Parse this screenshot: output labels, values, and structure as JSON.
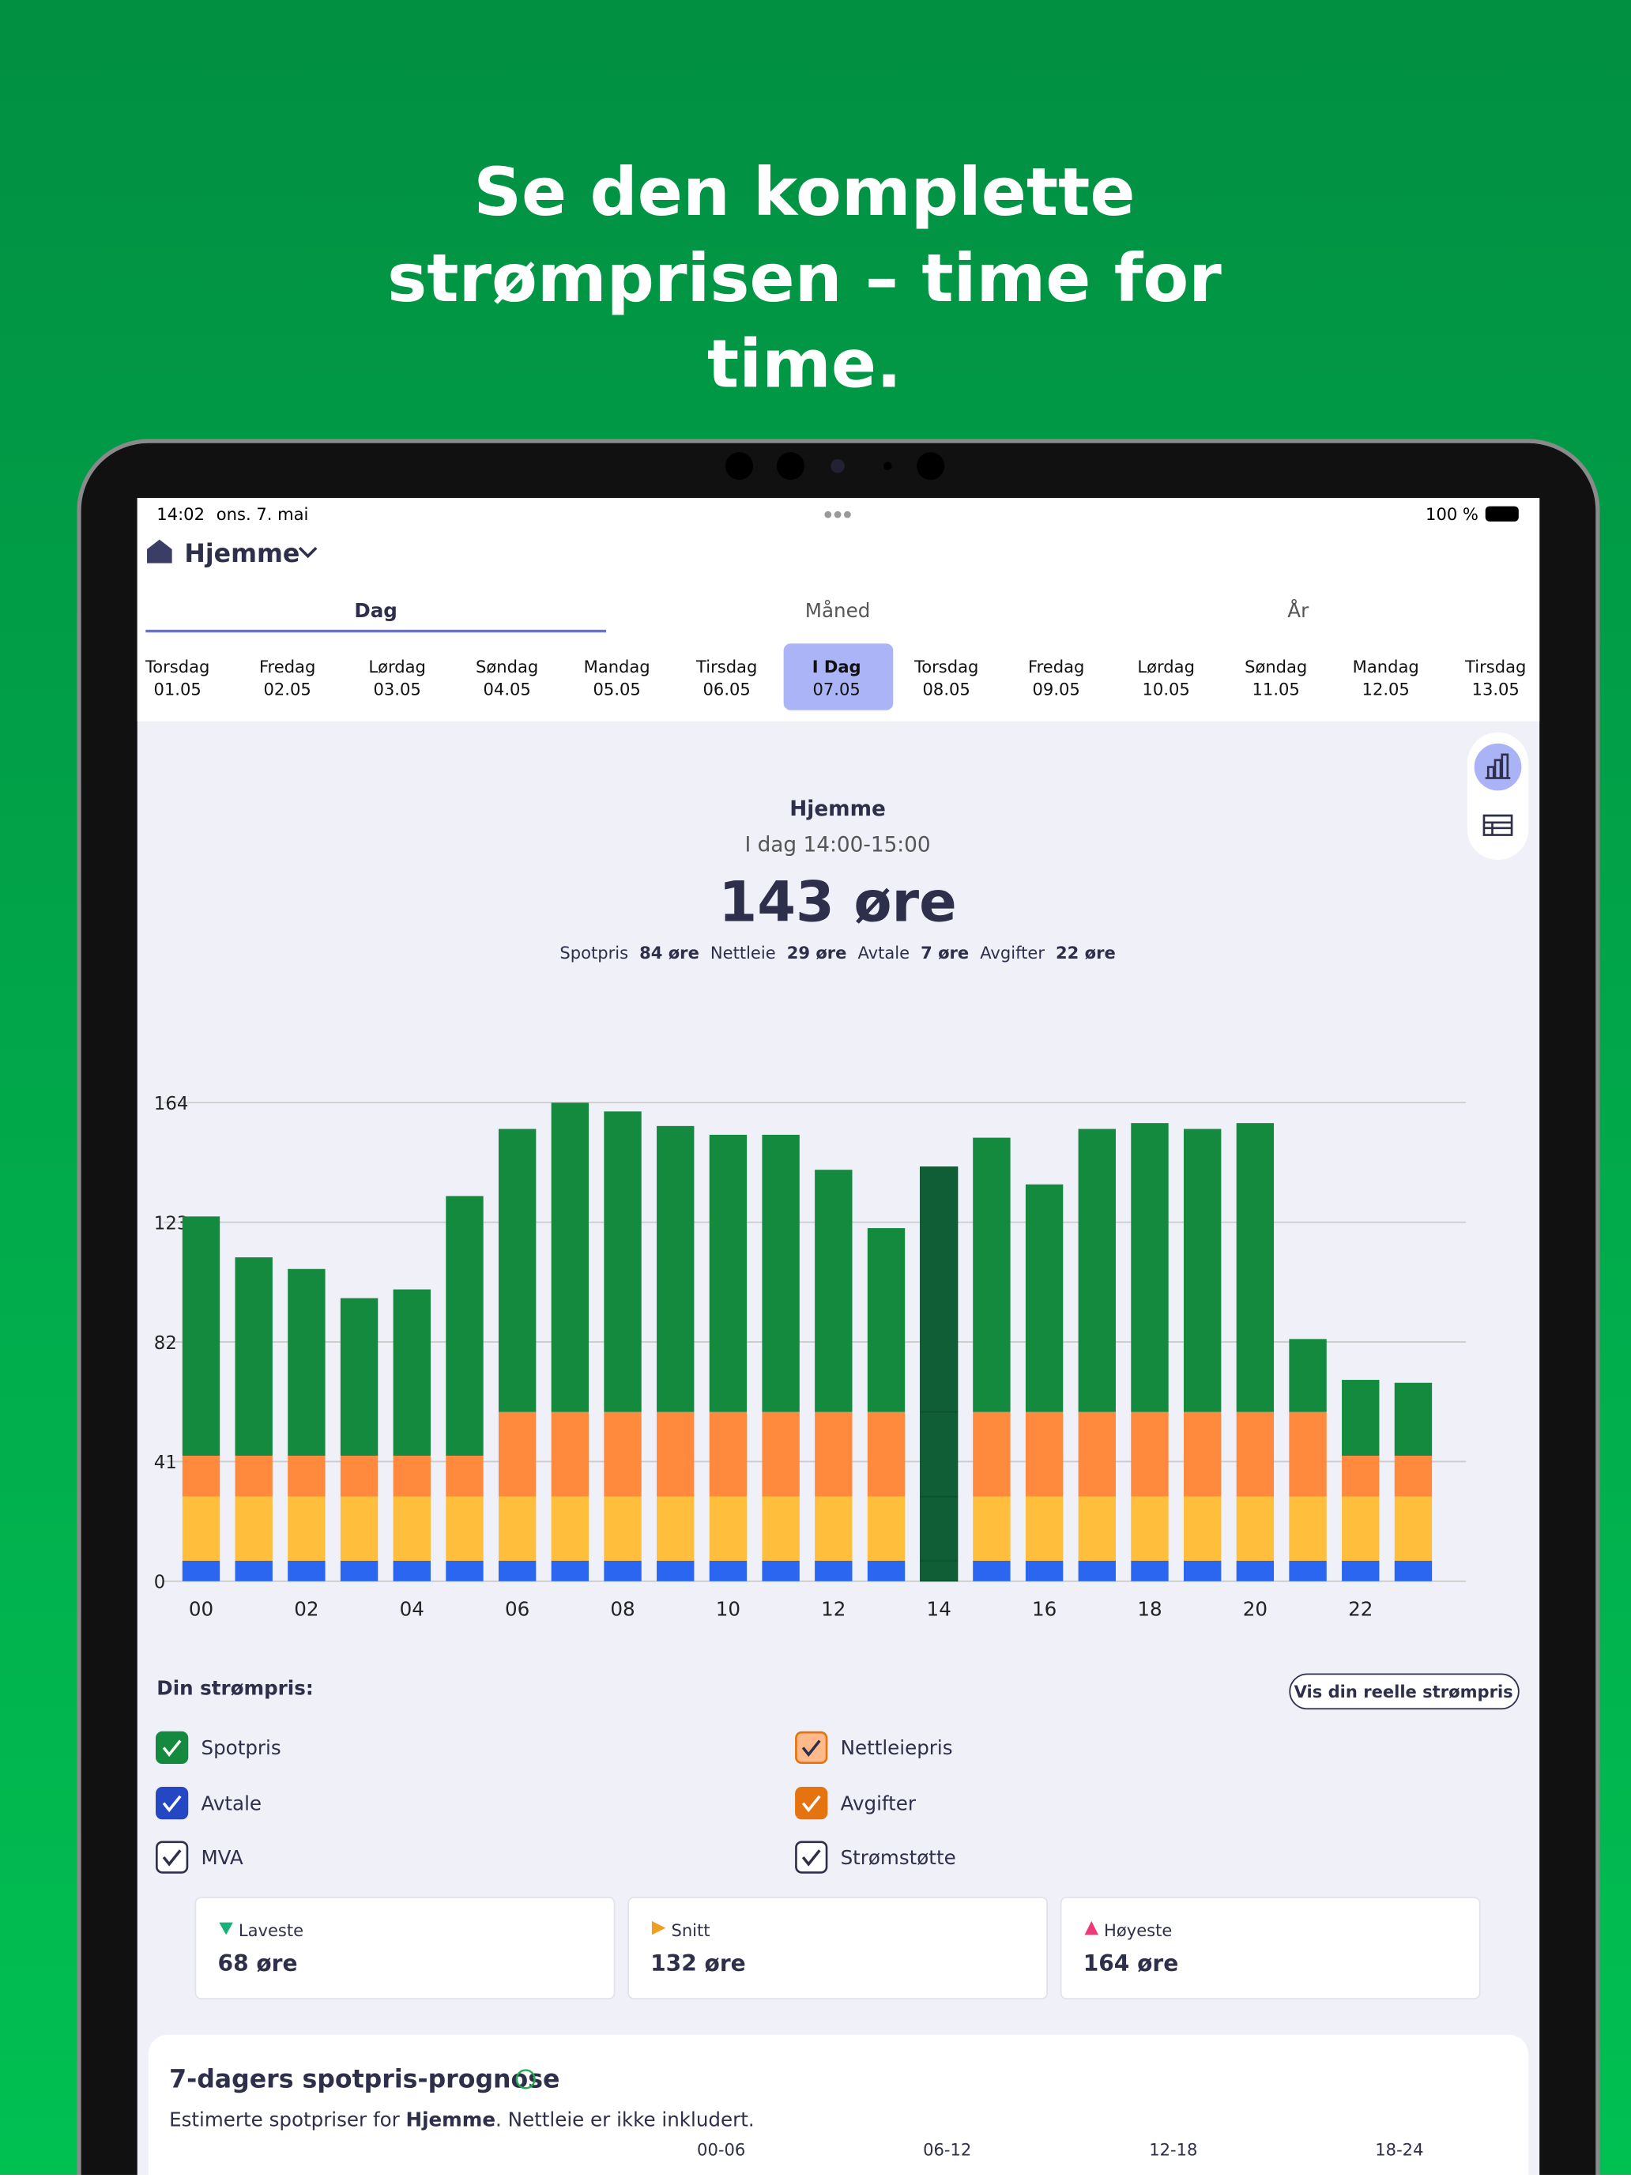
{
  "header": {
    "title": [
      "Se den komplette",
      "strømprisen – time for",
      "time."
    ]
  },
  "status": {
    "time": "14:02",
    "date": "ons. 7. mai",
    "battery": "100 %"
  },
  "location": "Hjemme",
  "tabs": [
    "Dag",
    "Måned",
    "År"
  ],
  "dates": [
    {
      "day": "Torsdag",
      "date": "01.05"
    },
    {
      "day": "Fredag",
      "date": "02.05"
    },
    {
      "day": "Lørdag",
      "date": "03.05"
    },
    {
      "day": "Søndag",
      "date": "04.05"
    },
    {
      "day": "Mandag",
      "date": "05.05"
    },
    {
      "day": "Tirsdag",
      "date": "06.05"
    },
    {
      "day": "I Dag",
      "date": "07.05"
    },
    {
      "day": "Torsdag",
      "date": "08.05"
    },
    {
      "day": "Fredag",
      "date": "09.05"
    },
    {
      "day": "Lørdag",
      "date": "10.05"
    },
    {
      "day": "Søndag",
      "date": "11.05"
    },
    {
      "day": "Mandag",
      "date": "12.05"
    },
    {
      "day": "Tirsdag",
      "date": "13.05"
    }
  ],
  "summary": {
    "place": "Hjemme",
    "period": "I dag 14:00-15:00",
    "price": "143 øre",
    "breakdown": [
      {
        "label": "Spotpris",
        "value": "84 øre"
      },
      {
        "label": "Nettleie",
        "value": "29 øre"
      },
      {
        "label": "Avtale",
        "value": "7 øre"
      },
      {
        "label": "Avgifter",
        "value": "22 øre"
      }
    ]
  },
  "chart_data": {
    "type": "bar",
    "stacked": true,
    "categories": [
      "00",
      null,
      "02",
      null,
      "04",
      null,
      "06",
      null,
      "08",
      null,
      "10",
      null,
      "12",
      null,
      "14",
      null,
      "16",
      null,
      "18",
      null,
      "20",
      null,
      "22",
      null
    ],
    "series": [
      {
        "name": "Avtale",
        "color": "#2a66f0",
        "values": [
          7,
          7,
          7,
          7,
          7,
          7,
          7,
          7,
          7,
          7,
          7,
          7,
          7,
          7,
          7,
          7,
          7,
          7,
          7,
          7,
          7,
          7,
          7,
          7
        ]
      },
      {
        "name": "Avgifter",
        "color": "#ffbe3c",
        "values": [
          22,
          22,
          22,
          22,
          22,
          22,
          22,
          22,
          22,
          22,
          22,
          22,
          22,
          22,
          22,
          22,
          22,
          22,
          22,
          22,
          22,
          22,
          22,
          22
        ]
      },
      {
        "name": "Nettleiepris",
        "color": "#ff8a3d",
        "values": [
          14,
          14,
          14,
          14,
          14,
          14,
          29,
          29,
          29,
          29,
          29,
          29,
          29,
          29,
          29,
          29,
          29,
          29,
          29,
          29,
          29,
          29,
          14,
          14
        ]
      },
      {
        "name": "Spotpris",
        "color": "#138a3e",
        "values": [
          82,
          68,
          64,
          54,
          57,
          89,
          97,
          106,
          103,
          98,
          95,
          95,
          83,
          63,
          84,
          94,
          78,
          97,
          99,
          97,
          99,
          25,
          26,
          25
        ]
      }
    ],
    "ylim": [
      0,
      164
    ],
    "yticks": [
      0,
      41,
      82,
      123,
      164
    ],
    "grid": true
  },
  "controls": {
    "heading": "Din strømpris:",
    "button": "Vis din reelle strømpris",
    "extra": [
      "MVA",
      "Strømstøtte"
    ]
  },
  "stats": [
    {
      "label": "Laveste",
      "value": "68 øre"
    },
    {
      "label": "Snitt",
      "value": "132 øre"
    },
    {
      "label": "Høyeste",
      "value": "164 øre"
    }
  ],
  "forecast": {
    "title": "7-dagers spotpris-prognose",
    "text_before": "Estimerte spotpriser for ",
    "text_bold": "Hjemme",
    "text_after": ". Nettleie er ikke inkludert.",
    "columns": [
      "00-06",
      "06-12",
      "12-18",
      "18-24"
    ]
  }
}
